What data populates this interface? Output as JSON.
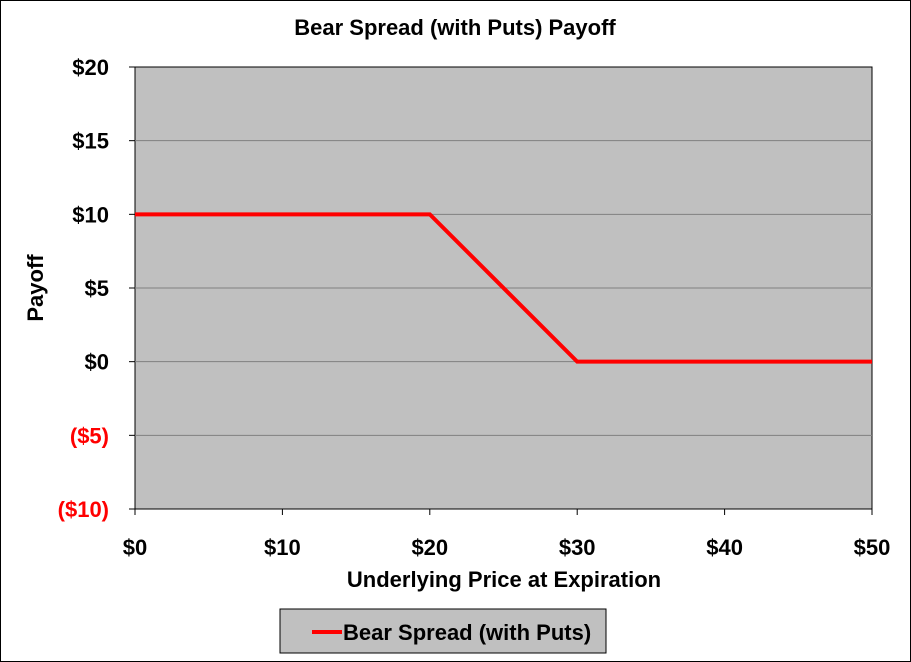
{
  "chart_data": {
    "type": "line",
    "title": "Bear Spread (with Puts) Payoff",
    "xlabel": "Underlying Price at Expiration",
    "ylabel": "Payoff",
    "xlim": [
      0,
      50
    ],
    "ylim": [
      -10,
      20
    ],
    "x_ticks": [
      0,
      10,
      20,
      30,
      40,
      50
    ],
    "x_tick_labels": [
      "$0",
      "$10",
      "$20",
      "$30",
      "$40",
      "$50"
    ],
    "y_ticks": [
      20,
      15,
      10,
      5,
      0,
      -5,
      -10
    ],
    "y_tick_labels": [
      "$20",
      "$15",
      "$10",
      "$5",
      "$0",
      "($5)",
      "($10)"
    ],
    "negative_tick_color": "#ff0000",
    "grid": true,
    "plot_background": "#c0c0c0",
    "legend_position": "bottom",
    "series": [
      {
        "name": "Bear Spread (with Puts)",
        "color": "#ff0000",
        "x": [
          0,
          20,
          30,
          50
        ],
        "y": [
          10,
          10,
          0,
          0
        ]
      }
    ]
  }
}
